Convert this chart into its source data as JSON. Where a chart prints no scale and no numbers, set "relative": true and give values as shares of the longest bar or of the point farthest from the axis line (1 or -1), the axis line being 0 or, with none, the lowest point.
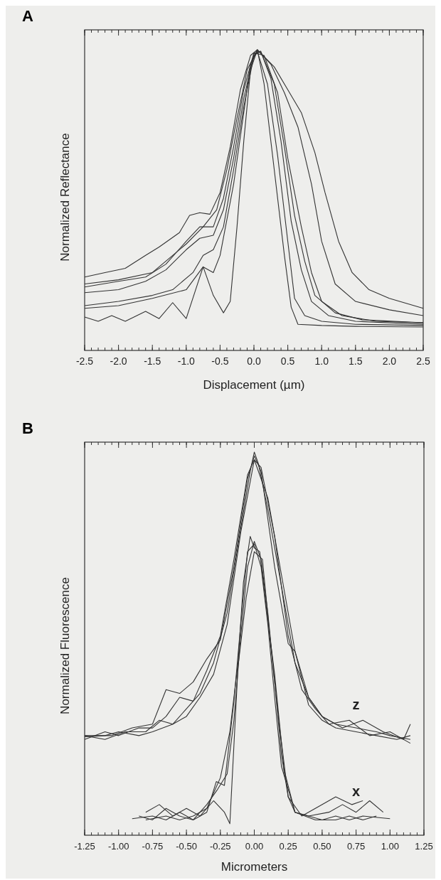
{
  "chart_data": [
    {
      "type": "line",
      "title": "A",
      "xlabel": "Displacement (µm)",
      "ylabel": "Normalized Reflectance",
      "relative": true,
      "grid": false,
      "xlim": [
        -2.5,
        2.5
      ],
      "xticks": [
        {
          "value": -2.5,
          "label": "-2.5"
        },
        {
          "value": -2,
          "label": "-2.0"
        },
        {
          "value": -1.5,
          "label": "-1.5"
        },
        {
          "value": -1,
          "label": "-1.0"
        },
        {
          "value": -0.5,
          "label": "-0.5"
        },
        {
          "value": 0,
          "label": "0.0"
        },
        {
          "value": 0.5,
          "label": "0.5"
        },
        {
          "value": 1,
          "label": "1.0"
        },
        {
          "value": 1.5,
          "label": "1.5"
        },
        {
          "value": 2,
          "label": "2.0"
        },
        {
          "value": 2.5,
          "label": "2.5"
        }
      ],
      "series": [
        {
          "color": "#333333",
          "x": [
            -2.5,
            -2.3,
            -2.1,
            -1.9,
            -1.6,
            -1.4,
            -1.2,
            -1.0,
            -0.75,
            -0.6,
            -0.45,
            -0.35,
            -0.25,
            -0.15,
            -0.05,
            0.05,
            0.15,
            0.3,
            0.45,
            0.55,
            0.65,
            1.0,
            1.5,
            2.5
          ],
          "values": [
            0.111,
            0.097,
            0.116,
            0.097,
            0.13,
            0.106,
            0.159,
            0.106,
            0.278,
            0.183,
            0.125,
            0.163,
            0.411,
            0.696,
            0.933,
            1.0,
            0.886,
            0.601,
            0.316,
            0.144,
            0.087,
            0.083,
            0.08,
            0.078
          ]
        },
        {
          "color": "#333333",
          "x": [
            -2.5,
            -2.0,
            -1.5,
            -1.0,
            -0.75,
            -0.6,
            -0.5,
            -0.3,
            -0.15,
            -0.05,
            0.05,
            0.2,
            0.35,
            0.5,
            0.6,
            0.75,
            1.0,
            1.5,
            2.5
          ],
          "values": [
            0.14,
            0.149,
            0.173,
            0.202,
            0.278,
            0.259,
            0.316,
            0.553,
            0.791,
            0.952,
            0.995,
            0.886,
            0.648,
            0.363,
            0.173,
            0.116,
            0.097,
            0.087,
            0.083
          ]
        },
        {
          "color": "#333333",
          "x": [
            -2.5,
            -2.0,
            -1.5,
            -1.2,
            -0.9,
            -0.75,
            -0.6,
            -0.45,
            -0.3,
            -0.15,
            0,
            0.1,
            0.25,
            0.4,
            0.55,
            0.7,
            0.85,
            1.1,
            1.5,
            2.5
          ],
          "values": [
            0.149,
            0.163,
            0.183,
            0.202,
            0.259,
            0.316,
            0.335,
            0.411,
            0.601,
            0.81,
            0.981,
            0.995,
            0.905,
            0.696,
            0.43,
            0.268,
            0.163,
            0.116,
            0.097,
            0.087
          ]
        },
        {
          "color": "#333333",
          "x": [
            -2.5,
            -2.0,
            -1.6,
            -1.3,
            -1.0,
            -0.8,
            -0.6,
            -0.45,
            -0.3,
            -0.15,
            0,
            0.1,
            0.3,
            0.45,
            0.6,
            0.75,
            0.9,
            1.2,
            1.6,
            2.5
          ],
          "values": [
            0.192,
            0.202,
            0.23,
            0.268,
            0.335,
            0.373,
            0.383,
            0.468,
            0.639,
            0.838,
            0.986,
            0.995,
            0.886,
            0.677,
            0.449,
            0.297,
            0.183,
            0.125,
            0.102,
            0.092
          ]
        },
        {
          "color": "#333333",
          "x": [
            -2.5,
            -2.0,
            -1.6,
            -1.3,
            -1.0,
            -0.8,
            -0.6,
            -0.45,
            -0.3,
            -0.15,
            0,
            0.15,
            0.35,
            0.5,
            0.7,
            0.85,
            1.0,
            1.3,
            1.8,
            2.5
          ],
          "values": [
            0.211,
            0.23,
            0.244,
            0.287,
            0.363,
            0.411,
            0.411,
            0.506,
            0.677,
            0.867,
            0.99,
            0.981,
            0.857,
            0.639,
            0.411,
            0.259,
            0.163,
            0.116,
            0.097,
            0.092
          ]
        },
        {
          "color": "#333333",
          "x": [
            -2.5,
            -2.2,
            -1.9,
            -1.6,
            -1.4,
            -1.1,
            -0.95,
            -0.8,
            -0.65,
            -0.5,
            -0.35,
            -0.2,
            -0.05,
            0.05,
            0.25,
            0.45,
            0.65,
            0.85,
            1.0,
            1.2,
            1.5,
            2.0,
            2.5
          ],
          "values": [
            0.244,
            0.259,
            0.273,
            0.316,
            0.344,
            0.392,
            0.449,
            0.458,
            0.453,
            0.525,
            0.677,
            0.867,
            0.981,
            1.0,
            0.952,
            0.857,
            0.743,
            0.553,
            0.363,
            0.221,
            0.163,
            0.135,
            0.116
          ]
        },
        {
          "color": "#333333",
          "x": [
            -2.5,
            -2.0,
            -1.5,
            -1.2,
            -1.0,
            -0.75,
            -0.55,
            -0.4,
            -0.25,
            -0.1,
            0.05,
            0.3,
            0.5,
            0.7,
            0.9,
            1.05,
            1.25,
            1.45,
            1.7,
            2.0,
            2.5
          ],
          "values": [
            0.221,
            0.235,
            0.259,
            0.316,
            0.354,
            0.411,
            0.468,
            0.601,
            0.772,
            0.933,
            1.0,
            0.943,
            0.867,
            0.791,
            0.658,
            0.525,
            0.363,
            0.259,
            0.202,
            0.173,
            0.14
          ]
        }
      ]
    },
    {
      "type": "line",
      "title": "B",
      "xlabel": "Micrometers",
      "ylabel": "Normalized Fluorescence",
      "relative": true,
      "grid": false,
      "xlim": [
        -1.25,
        1.25
      ],
      "xticks": [
        {
          "value": -1.25,
          "label": "-1.25"
        },
        {
          "value": -1,
          "label": "-1.00"
        },
        {
          "value": -0.75,
          "label": "-0.75"
        },
        {
          "value": -0.5,
          "label": "-0.50"
        },
        {
          "value": -0.25,
          "label": "-0.25"
        },
        {
          "value": 0,
          "label": "0.00"
        },
        {
          "value": 0.25,
          "label": "0.25"
        },
        {
          "value": 0.5,
          "label": "0.50"
        },
        {
          "value": 0.75,
          "label": "0.75"
        },
        {
          "value": 1,
          "label": "1.00"
        },
        {
          "value": 1.25,
          "label": "1.25"
        }
      ],
      "annotations": [
        "z",
        "x"
      ],
      "series": [
        {
          "color": "#333333",
          "x": [
            -1.25,
            -1.1,
            -1.0,
            -0.85,
            -0.75,
            -0.6,
            -0.5,
            -0.4,
            -0.3,
            -0.2,
            -0.1,
            -0.03,
            0,
            0.03,
            0.1,
            0.2,
            0.3,
            0.4,
            0.5,
            0.6,
            0.75,
            0.9,
            1.0,
            1.15
          ],
          "values": [
            0.257,
            0.26,
            0.27,
            0.26,
            0.27,
            0.29,
            0.33,
            0.37,
            0.45,
            0.58,
            0.8,
            0.95,
            1.0,
            0.97,
            0.85,
            0.65,
            0.45,
            0.36,
            0.31,
            0.29,
            0.28,
            0.27,
            0.26,
            0.25
          ]
        },
        {
          "color": "#333333",
          "x": [
            -1.25,
            -1.1,
            -1.0,
            -0.85,
            -0.75,
            -0.65,
            -0.55,
            -0.45,
            -0.35,
            -0.25,
            -0.15,
            -0.05,
            0,
            0.05,
            0.15,
            0.25,
            0.35,
            0.45,
            0.55,
            0.7,
            0.85,
            1.0,
            1.15
          ],
          "values": [
            0.25,
            0.27,
            0.26,
            0.28,
            0.28,
            0.31,
            0.36,
            0.35,
            0.43,
            0.52,
            0.72,
            0.94,
            0.98,
            0.96,
            0.78,
            0.52,
            0.38,
            0.33,
            0.29,
            0.3,
            0.26,
            0.27,
            0.24
          ]
        },
        {
          "color": "#333333",
          "x": [
            -1.25,
            -1.1,
            -0.95,
            -0.8,
            -0.7,
            -0.6,
            -0.5,
            -0.4,
            -0.3,
            -0.2,
            -0.1,
            0,
            0.1,
            0.2,
            0.3,
            0.4,
            0.5,
            0.6,
            0.75,
            0.9,
            1.05,
            1.15
          ],
          "values": [
            0.26,
            0.25,
            0.27,
            0.27,
            0.3,
            0.29,
            0.31,
            0.36,
            0.42,
            0.55,
            0.79,
            0.98,
            0.88,
            0.68,
            0.48,
            0.34,
            0.3,
            0.28,
            0.27,
            0.26,
            0.25,
            0.26
          ]
        },
        {
          "color": "#333333",
          "x": [
            -1.25,
            -1.05,
            -0.9,
            -0.75,
            -0.65,
            -0.55,
            -0.45,
            -0.35,
            -0.25,
            -0.15,
            -0.05,
            0,
            0.05,
            0.15,
            0.25,
            0.3,
            0.4,
            0.5,
            0.65,
            0.8,
            0.95,
            1.1,
            1.15
          ],
          "values": [
            0.26,
            0.26,
            0.28,
            0.29,
            0.38,
            0.37,
            0.4,
            0.46,
            0.51,
            0.7,
            0.93,
            0.99,
            0.95,
            0.7,
            0.5,
            0.48,
            0.36,
            0.31,
            0.28,
            0.3,
            0.27,
            0.25,
            0.29
          ]
        },
        {
          "color": "#333333",
          "x": [
            -0.9,
            -0.75,
            -0.65,
            -0.55,
            -0.45,
            -0.35,
            -0.27,
            -0.2,
            -0.15,
            -0.1,
            -0.05,
            0,
            0.05,
            0.1,
            0.15,
            0.2,
            0.25,
            0.3,
            0.4,
            0.5,
            0.6,
            0.7,
            0.8,
            1.0
          ],
          "values": [
            0.043,
            0.05,
            0.04,
            0.06,
            0.04,
            0.08,
            0.12,
            0.16,
            0.3,
            0.52,
            0.7,
            0.767,
            0.72,
            0.58,
            0.4,
            0.21,
            0.1,
            0.06,
            0.05,
            0.04,
            0.05,
            0.04,
            0.05,
            0.043
          ]
        },
        {
          "color": "#333333",
          "x": [
            -0.85,
            -0.75,
            -0.65,
            -0.55,
            -0.45,
            -0.35,
            -0.28,
            -0.22,
            -0.15,
            -0.1,
            -0.05,
            0,
            0.05,
            0.1,
            0.15,
            0.2,
            0.3,
            0.4,
            0.55,
            0.65,
            0.75,
            0.85,
            0.95
          ],
          "values": [
            0.05,
            0.04,
            0.07,
            0.05,
            0.04,
            0.06,
            0.14,
            0.13,
            0.35,
            0.55,
            0.74,
            0.76,
            0.7,
            0.55,
            0.36,
            0.18,
            0.06,
            0.05,
            0.06,
            0.08,
            0.06,
            0.09,
            0.06
          ]
        },
        {
          "color": "#333333",
          "x": [
            -0.8,
            -0.7,
            -0.6,
            -0.5,
            -0.4,
            -0.3,
            -0.22,
            -0.18,
            -0.12,
            -0.06,
            0,
            0.06,
            0.12,
            0.18,
            0.25,
            0.35,
            0.45,
            0.6,
            0.72,
            0.8
          ],
          "values": [
            0.06,
            0.08,
            0.05,
            0.07,
            0.05,
            0.09,
            0.06,
            0.03,
            0.44,
            0.62,
            0.74,
            0.72,
            0.5,
            0.3,
            0.1,
            0.05,
            0.07,
            0.1,
            0.08,
            0.09
          ]
        },
        {
          "color": "#333333",
          "x": [
            -0.8,
            -0.65,
            -0.55,
            -0.45,
            -0.35,
            -0.25,
            -0.18,
            -0.12,
            -0.08,
            -0.03,
            0,
            0.04,
            0.1,
            0.15,
            0.22,
            0.3,
            0.45,
            0.6,
            0.7,
            0.8,
            0.9
          ],
          "values": [
            0.04,
            0.05,
            0.04,
            0.05,
            0.07,
            0.15,
            0.27,
            0.45,
            0.66,
            0.78,
            0.75,
            0.74,
            0.56,
            0.42,
            0.17,
            0.06,
            0.04,
            0.04,
            0.05,
            0.04,
            0.05
          ]
        }
      ]
    }
  ]
}
